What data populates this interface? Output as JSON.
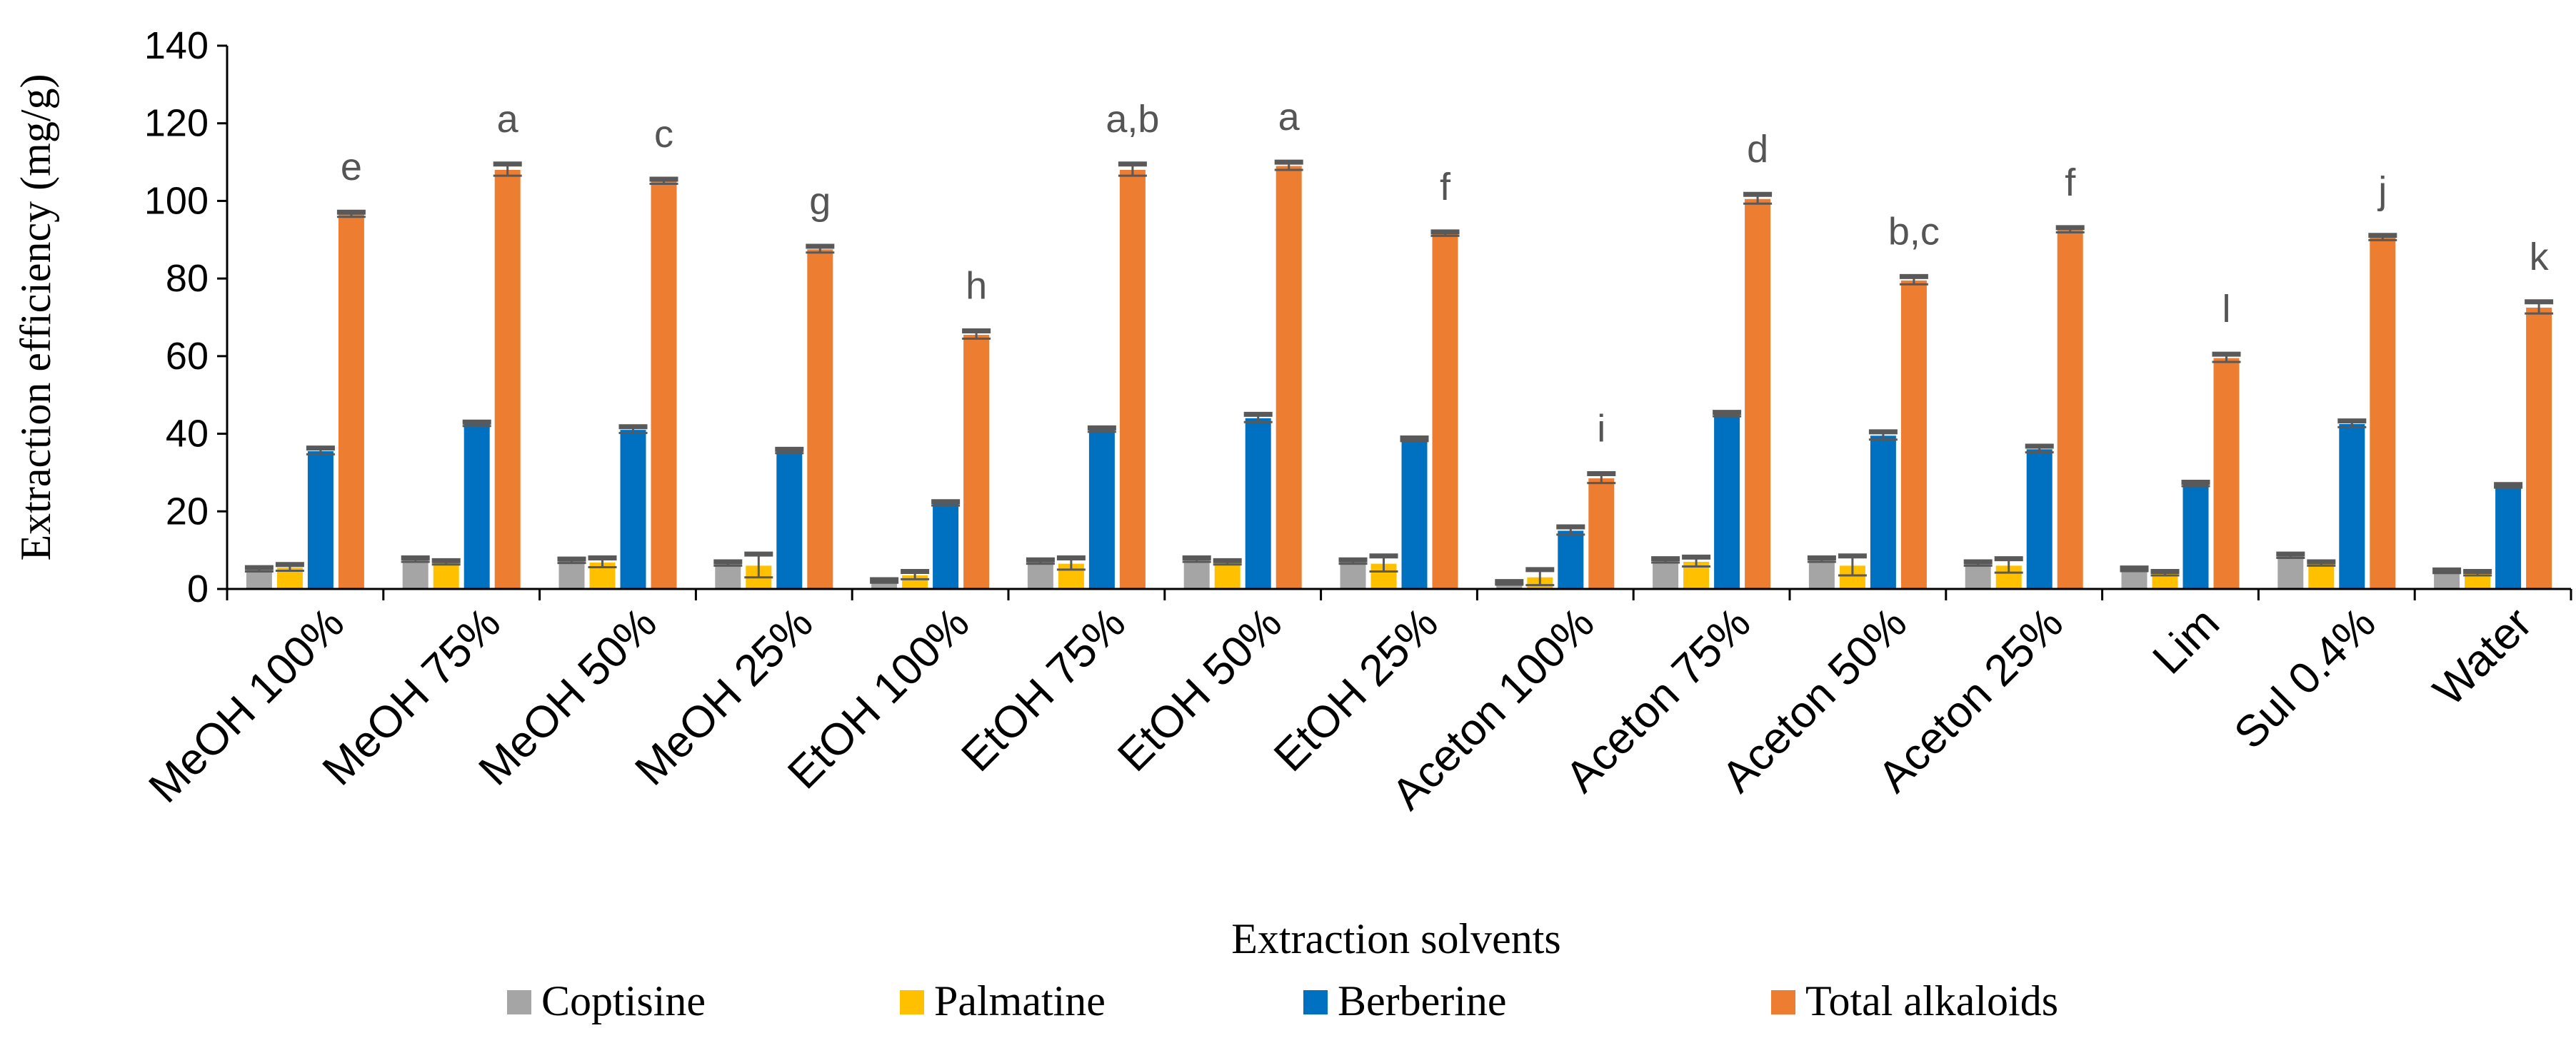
{
  "chart_data": {
    "type": "bar",
    "title": "",
    "xlabel": "Extraction solvents",
    "ylabel": "Extraction efficiency (mg/g)",
    "ylim": [
      0,
      140
    ],
    "yticks": [
      0,
      20,
      40,
      60,
      80,
      100,
      120,
      140
    ],
    "grid": false,
    "legend_position": "bottom",
    "categories": [
      "MeOH 100%",
      "MeOH 75%",
      "MeOH 50%",
      "MeOH 25%",
      "EtOH 100%",
      "EtOH 75%",
      "EtOH 50%",
      "EtOH 25%",
      "Aceton 100%",
      "Aceton 75%",
      "Aceton 50%",
      "Aceton 25%",
      "Lim",
      "Sul 0.4%",
      "Water"
    ],
    "series": [
      {
        "name": "Coptisine",
        "color": "#a5a5a5",
        "values": [
          5,
          7.5,
          7.2,
          6.5,
          2,
          7,
          7.5,
          7,
          1.5,
          7.3,
          7.5,
          6.5,
          5,
          8.5,
          4.5
        ],
        "errors": [
          0.5,
          0.5,
          0.5,
          0.5,
          0.4,
          0.5,
          0.5,
          0.5,
          0.4,
          0.5,
          0.5,
          0.5,
          0.4,
          0.5,
          0.4
        ]
      },
      {
        "name": "Palmatine",
        "color": "#ffc000",
        "values": [
          5.5,
          6.8,
          6.8,
          6,
          3.5,
          6.5,
          6.8,
          6.5,
          3,
          7,
          6,
          6,
          4,
          6.5,
          4
        ],
        "errors": [
          0.8,
          0.5,
          1.2,
          3,
          1,
          1.5,
          0.5,
          2,
          2,
          1.2,
          2.5,
          1.8,
          0.5,
          0.5,
          0.5
        ]
      },
      {
        "name": "Berberine",
        "color": "#0070c0",
        "values": [
          35.5,
          42.5,
          41,
          35.5,
          22,
          41,
          44,
          38.5,
          15,
          45,
          39.5,
          36,
          27,
          42.5,
          26.5
        ],
        "errors": [
          0.8,
          0.5,
          0.8,
          0.5,
          0.5,
          0.5,
          1,
          0.4,
          1,
          0.5,
          1,
          0.8,
          0.5,
          0.8,
          0.4
        ]
      },
      {
        "name": "Total alkaloids",
        "color": "#ed7d31",
        "values": [
          96.5,
          108,
          105,
          87.5,
          65.5,
          108,
          109,
          91.5,
          28.5,
          100.5,
          79.5,
          92.5,
          59.5,
          90.5,
          72.5
        ],
        "errors": [
          0.6,
          1.5,
          0.6,
          0.8,
          1,
          1.5,
          1,
          0.5,
          1.2,
          1.2,
          1,
          0.6,
          1,
          0.6,
          1.5
        ]
      }
    ],
    "significance_labels": [
      "e",
      "a",
      "c",
      "g",
      "h",
      "a,b",
      "a",
      "f",
      "i",
      "d",
      "b,c",
      "f",
      "l",
      "j",
      "k"
    ]
  }
}
